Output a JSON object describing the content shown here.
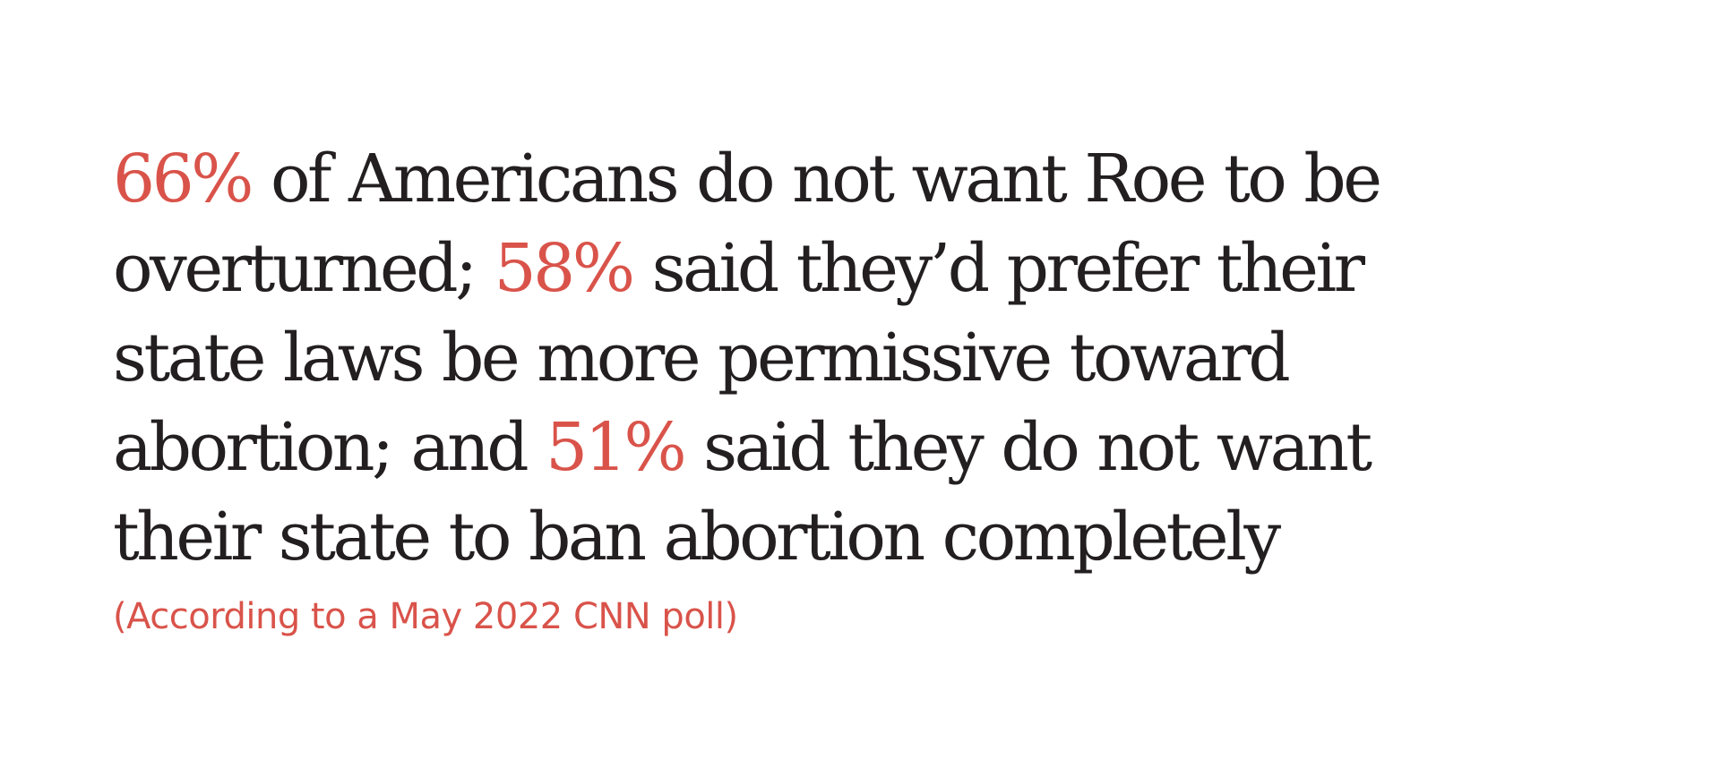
{
  "colors": {
    "background": "#ffffff",
    "text": "#231f20",
    "accent": "#d9534a"
  },
  "quote": {
    "stat1": "66%",
    "text1": " of Americans do not want Roe to be overturned; ",
    "stat2": "58%",
    "text2": " said they’d prefer their state laws be more permissive toward abortion; and ",
    "stat3": "51%",
    "text3": " said they do not want their state to ban abortion completely"
  },
  "source": "(According to a May 2022 CNN poll)"
}
